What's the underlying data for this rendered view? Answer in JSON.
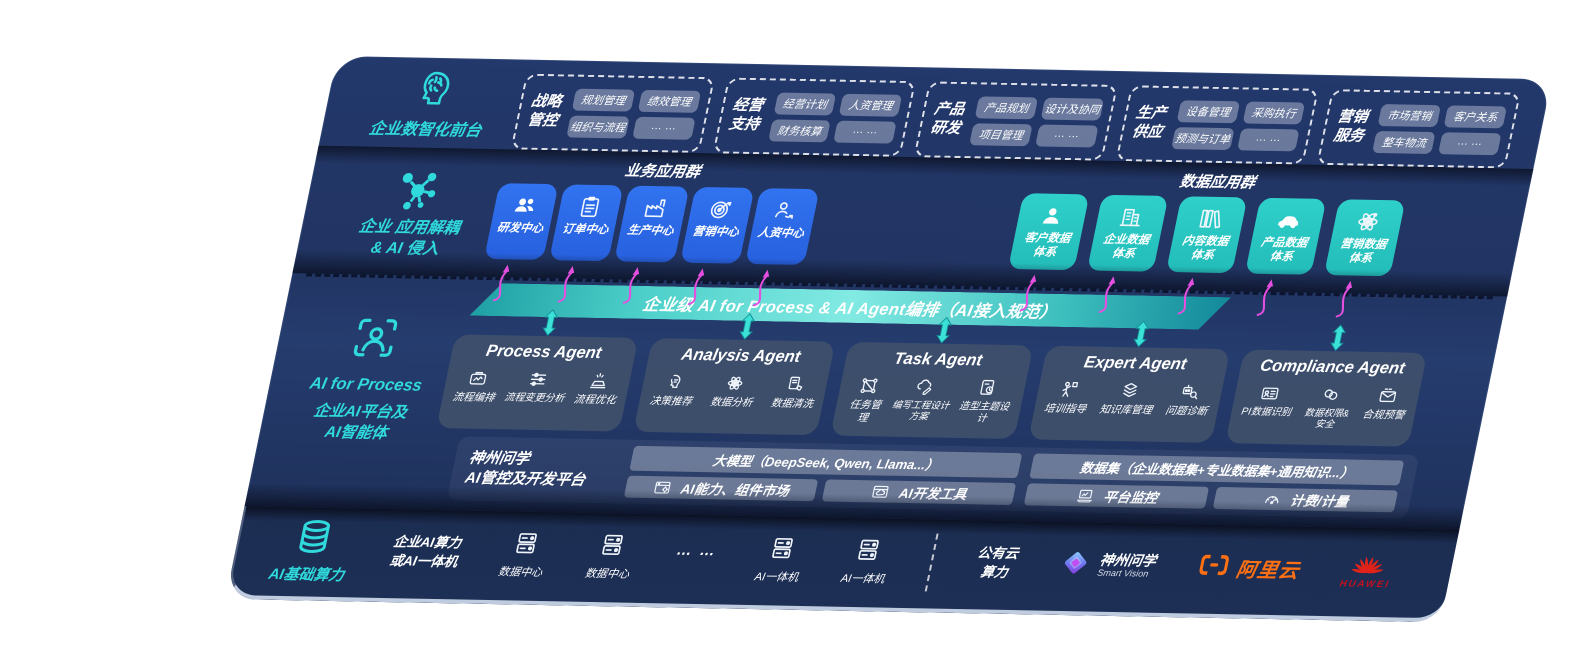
{
  "front_layer": {
    "label": "企业数智化前台",
    "icon": "brain-head-icon",
    "groups": [
      {
        "name": "战略管控",
        "items": [
          "规划管理",
          "绩效管理",
          "组织与流程",
          "… …"
        ]
      },
      {
        "name": "经营支持",
        "items": [
          "经营计划",
          "人资管理",
          "财务核算",
          "… …"
        ]
      },
      {
        "name": "产品研发",
        "items": [
          "产品规划",
          "设计及协同",
          "项目管理",
          "… …"
        ]
      },
      {
        "name": "生产供应",
        "items": [
          "设备管理",
          "采购执行",
          "预测与订单",
          "… …"
        ]
      },
      {
        "name": "营销服务",
        "items": [
          "市场营销",
          "客户关系",
          "整车物流",
          "… …"
        ]
      }
    ]
  },
  "app_layer": {
    "label_line1": "企业 应用解耦",
    "label_line2": "& AI 侵入",
    "icon": "molecule-icon",
    "business_group": {
      "title": "业务应用群",
      "cards": [
        {
          "label": "研发中心",
          "icon": "rd-users-icon"
        },
        {
          "label": "订单中心",
          "icon": "order-clipboard-icon"
        },
        {
          "label": "生产中心",
          "icon": "production-factory-icon"
        },
        {
          "label": "营销中心",
          "icon": "marketing-target-icon"
        },
        {
          "label": "人资中心",
          "icon": "hr-people-icon"
        }
      ]
    },
    "data_group": {
      "title": "数据应用群",
      "cards": [
        {
          "label": "客户数据\n体系",
          "icon": "customer-user-icon"
        },
        {
          "label": "企业数据\n体系",
          "icon": "enterprise-building-icon"
        },
        {
          "label": "内容数据\n体系",
          "icon": "content-library-icon"
        },
        {
          "label": "产品数据\n体系",
          "icon": "product-car-icon"
        },
        {
          "label": "营销数据\n体系",
          "icon": "marketing-atom-icon"
        }
      ]
    }
  },
  "ai_layer": {
    "label_title": "AI for Process",
    "label_line2": "企业AI平台及",
    "label_line3": "AI智能体",
    "icon": "person-scan-icon",
    "banner": "企业级 AI for Process & AI Agent编排（AI接入规范）",
    "agents": [
      {
        "title": "Process Agent",
        "items": [
          {
            "label": "流程编排",
            "icon": "flow-orchestration-icon"
          },
          {
            "label": "流程变更分析",
            "icon": "flow-change-analysis-icon"
          },
          {
            "label": "流程优化",
            "icon": "flow-optimization-icon"
          }
        ]
      },
      {
        "title": "Analysis Agent",
        "items": [
          {
            "label": "决策推荐",
            "icon": "decision-recommend-icon"
          },
          {
            "label": "数据分析",
            "icon": "data-analysis-icon"
          },
          {
            "label": "数据清洗",
            "icon": "data-clean-icon"
          }
        ]
      },
      {
        "title": "Task Agent",
        "items": [
          {
            "label": "任务管理",
            "icon": "task-manage-icon"
          },
          {
            "label": "编写工程设计方案",
            "icon": "engineering-plan-icon"
          },
          {
            "label": "造型主题设计",
            "icon": "theme-design-icon"
          }
        ]
      },
      {
        "title": "Expert Agent",
        "items": [
          {
            "label": "培训指导",
            "icon": "training-guide-icon"
          },
          {
            "label": "知识库管理",
            "icon": "knowledge-base-icon"
          },
          {
            "label": "问题诊断",
            "icon": "issue-diagnosis-icon"
          }
        ]
      },
      {
        "title": "Compliance Agent",
        "items": [
          {
            "label": "PI数据识别",
            "icon": "pi-data-icon"
          },
          {
            "label": "数据权限&\n安全",
            "icon": "data-permission-icon"
          },
          {
            "label": "合规预警",
            "icon": "compliance-alert-icon"
          }
        ]
      }
    ],
    "platform": {
      "label_line1": "神州问学",
      "label_line2": "AI管控及开发平台",
      "model_bar": "大模型（DeepSeek, Qwen, Llama...）",
      "dataset_bar": "数据集（企业数据集+专业数据集+通用知识...）",
      "cells": [
        {
          "label": "AI能力、组件市场",
          "icon": "component-market-icon"
        },
        {
          "label": "AI开发工具",
          "icon": "dev-tools-icon"
        },
        {
          "label": "平台监控",
          "icon": "platform-monitor-icon"
        },
        {
          "label": "计费/计量",
          "icon": "metering-icon"
        }
      ]
    }
  },
  "infra_layer": {
    "label": "AI基础算力",
    "icon": "database-icon",
    "compute_label_line1": "企业AI算力",
    "compute_label_line2": "或AI一体机",
    "nodes": [
      {
        "label": "数据中心",
        "icon": "server-icon"
      },
      {
        "label": "数据中心",
        "icon": "server-icon"
      },
      {
        "type": "dots",
        "label": "… …"
      },
      {
        "label": "AI一体机",
        "icon": "server-icon"
      },
      {
        "label": "AI一体机",
        "icon": "server-icon"
      }
    ],
    "public_cloud_line1": "公有云",
    "public_cloud_line2": "算力",
    "smart_vision": {
      "line1": "神州问学",
      "line2": "Smart Vision"
    },
    "aliyun": {
      "text": "阿里云"
    },
    "huawei": {
      "text": "HUAWEI"
    }
  },
  "colors": {
    "board_bg": "#213462",
    "accent_teal": "#2FD9DC",
    "card_blue": "#2B69E6",
    "card_teal": "#29C7C3",
    "agent_panel": "#40506C",
    "bar_bg": "#6B7890",
    "magenta_arrow": "#E44FE0",
    "banner_teal": "#5ADBD5",
    "aliyun_orange": "#FF7012",
    "huawei_red": "#D6001C",
    "bottom_edge": "#CDD9EA"
  }
}
